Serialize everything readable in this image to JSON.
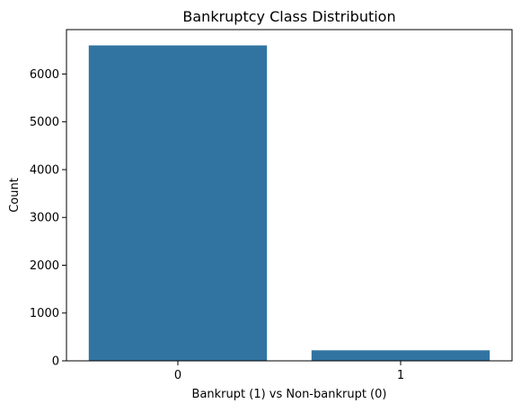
{
  "chart_data": {
    "type": "bar",
    "title": "Bankruptcy Class Distribution",
    "xlabel": "Bankrupt (1) vs Non-bankrupt (0)",
    "ylabel": "Count",
    "categories": [
      "0",
      "1"
    ],
    "values": [
      6599,
      220
    ],
    "ylim": [
      0,
      6929
    ],
    "yticks": [
      0,
      1000,
      2000,
      3000,
      4000,
      5000,
      6000
    ],
    "bar_color": "#3274a1",
    "grid": false,
    "legend": "none"
  }
}
